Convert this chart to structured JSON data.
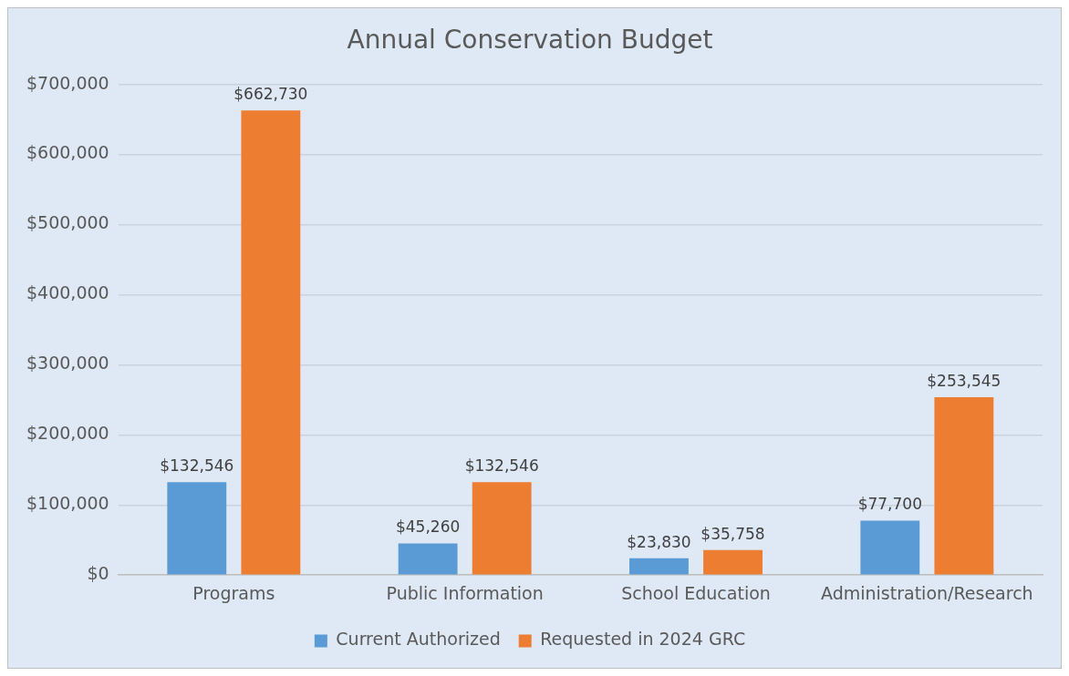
{
  "chart_data": {
    "type": "bar",
    "title": "Annual Conservation Budget",
    "categories": [
      "Programs",
      "Public Information",
      "School Education",
      "Administration/Research"
    ],
    "series": [
      {
        "name": "Current Authorized",
        "color": "#5b9bd5",
        "values": [
          132546,
          45260,
          23830,
          77700
        ],
        "value_labels": [
          "$132,546",
          "$45,260",
          "$23,830",
          "$77,700"
        ]
      },
      {
        "name": "Requested in 2024 GRC",
        "color": "#ed7d31",
        "values": [
          662730,
          132546,
          35758,
          253545
        ],
        "value_labels": [
          "$662,730",
          "$132,546",
          "$35,758",
          "$253,545"
        ]
      }
    ],
    "ylim": [
      0,
      700000
    ],
    "yticks": [
      {
        "value": 0,
        "label": "$0"
      },
      {
        "value": 100000,
        "label": "$100,000"
      },
      {
        "value": 200000,
        "label": "$200,000"
      },
      {
        "value": 300000,
        "label": "$300,000"
      },
      {
        "value": 400000,
        "label": "$400,000"
      },
      {
        "value": 500000,
        "label": "$500,000"
      },
      {
        "value": 600000,
        "label": "$600,000"
      },
      {
        "value": 700000,
        "label": "$700,000"
      }
    ],
    "grid": "y",
    "legend": "bottom"
  }
}
